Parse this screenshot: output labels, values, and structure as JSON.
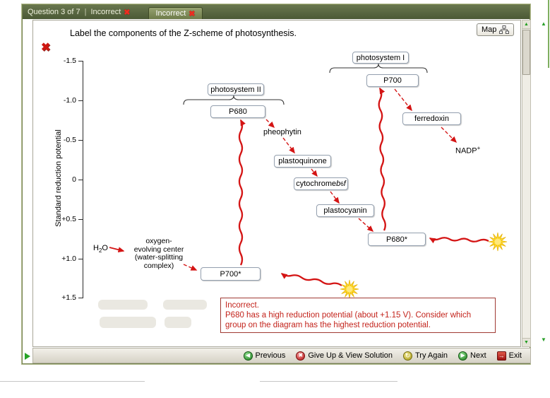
{
  "titlebar": {
    "question_counter": "Question 3 of 7",
    "separator": "|",
    "status": "Incorrect",
    "tab": "Incorrect"
  },
  "stage": {
    "prompt": "Label the components of the Z-scheme of photosynthesis.",
    "map_button": "Map"
  },
  "axis": {
    "title": "Standard reduction potential",
    "ticks": [
      "-1.5",
      "-1.0",
      "-0.5",
      "0",
      "+0.5",
      "+1.0",
      "+1.5"
    ]
  },
  "diagram": {
    "photosystem2": "photosystem II",
    "photosystem1": "photosystem I",
    "p680": "P680",
    "p700": "P700",
    "pheophytin": "pheophytin",
    "plastoquinone": "plastoquinone",
    "cytochrome": {
      "pre": "cytochrome ",
      "b": "b",
      "sub": "6",
      "f": "f"
    },
    "plastocyanin": "plastocyanin",
    "ferredoxin": "ferredoxin",
    "p680_excited": "P680*",
    "p700_excited": "P700*",
    "nadp": {
      "pre": "NADP",
      "sup": "+"
    },
    "water": {
      "pre": "H",
      "sub": "2",
      "post": "O"
    },
    "oec_lines": [
      "oxygen-",
      "evolving center",
      "(water-splitting",
      "complex)"
    ]
  },
  "feedback": {
    "heading": "Incorrect.",
    "body": "P680 has a high reduction potential (about +1.15 V). Consider which group on the diagram has the highest reduction potential."
  },
  "toolbar": {
    "previous": "Previous",
    "give_up": "Give Up & View Solution",
    "try_again": "Try Again",
    "next": "Next",
    "exit": "Exit"
  },
  "icons": {
    "incorrect_x": "✖",
    "previous": "◀",
    "give_up": "✖",
    "try_again": "↻",
    "next": "▶",
    "exit": "→",
    "scroll_up": "▲",
    "scroll_down": "▼"
  }
}
